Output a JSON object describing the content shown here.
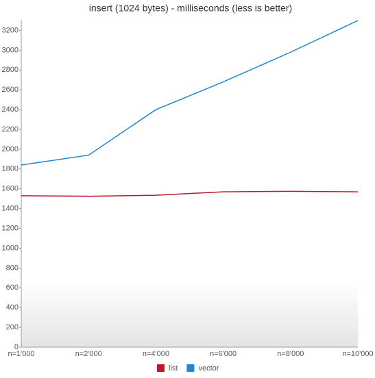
{
  "chart_data": {
    "type": "line",
    "title": "insert (1024 bytes) - milliseconds (less is better)",
    "categories": [
      "n=1'000",
      "n=2'000",
      "n=4'000",
      "n=6'000",
      "n=8'000",
      "n=10'000"
    ],
    "series": [
      {
        "name": "list",
        "color": "#c3142c",
        "values": [
          1530,
          1525,
          1535,
          1570,
          1575,
          1570
        ]
      },
      {
        "name": "vector",
        "color": "#1e87d2",
        "values": [
          1840,
          1940,
          2400,
          2680,
          2980,
          3300
        ]
      }
    ],
    "ylim": [
      0,
      3300
    ],
    "yticks": [
      0,
      200,
      400,
      600,
      800,
      1000,
      1200,
      1400,
      1600,
      1800,
      2000,
      2200,
      2400,
      2600,
      2800,
      3000,
      3200
    ]
  }
}
